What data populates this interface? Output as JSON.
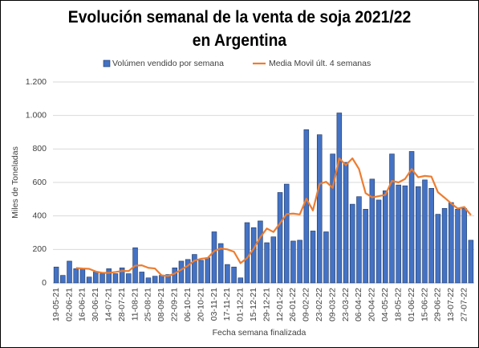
{
  "chart_data": {
    "type": "bar_line",
    "title": "Evolución semanal de la venta de soja 2021/22 en Argentina",
    "x_label": "Fecha semana finalizada",
    "y_label": "Miles de Toneladas",
    "categories": [
      "19-05-21",
      null,
      "02-06-21",
      null,
      "16-06-21",
      null,
      "30-06-21",
      null,
      "14-07-21",
      null,
      "28-07-21",
      null,
      "11-08-21",
      null,
      "25-08-21",
      null,
      "08-09-21",
      null,
      "22-09-21",
      null,
      "06-10-21",
      null,
      "20-10-21",
      null,
      "03-11-21",
      null,
      "17-11-21",
      null,
      "01-12-21",
      null,
      "15-12-21",
      null,
      "29-12-21",
      null,
      "12-01-22",
      null,
      "26-01-22",
      null,
      "09-02-22",
      null,
      "23-02-22",
      null,
      "09-03-22",
      null,
      "23-03-22",
      null,
      "06-04-22",
      null,
      "20-04-22",
      null,
      "04-05-22",
      null,
      "18-05-22",
      null,
      "01-06-22",
      null,
      "15-06-22",
      null,
      "29-06-22",
      null,
      "13-07-22",
      null,
      "27-07-22",
      null
    ],
    "series": [
      {
        "name": "Volúmen vendido por semana",
        "type": "bar",
        "color": "#4472c4",
        "values": [
          95,
          45,
          130,
          85,
          85,
          35,
          65,
          55,
          85,
          55,
          90,
          55,
          210,
          65,
          30,
          40,
          45,
          50,
          90,
          130,
          140,
          170,
          135,
          150,
          305,
          235,
          110,
          95,
          30,
          360,
          330,
          370,
          240,
          275,
          540,
          590,
          250,
          255,
          915,
          310,
          885,
          305,
          770,
          1015,
          720,
          470,
          515,
          440,
          620,
          495,
          550,
          770,
          585,
          580,
          785,
          575,
          615,
          565,
          410,
          445,
          480,
          440,
          445,
          255
        ]
      },
      {
        "name": "Media Movil últ. 4 semanas",
        "type": "line",
        "color": "#ed7d31",
        "values": [
          null,
          null,
          null,
          89,
          86,
          84,
          68,
          60,
          60,
          65,
          71,
          71,
          103,
          105,
          90,
          86,
          45,
          41,
          56,
          79,
          103,
          133,
          144,
          149,
          190,
          206,
          200,
          186,
          118,
          149,
          204,
          273,
          325,
          304,
          356,
          411,
          414,
          409,
          503,
          433,
          591,
          604,
          568,
          744,
          703,
          744,
          680,
          536,
          511,
          518,
          526,
          609,
          600,
          621,
          680,
          631,
          639,
          635,
          541,
          509,
          475,
          444,
          453,
          405
        ]
      }
    ],
    "ylim": [
      0,
      1200
    ],
    "yticks": [
      0,
      200,
      400,
      600,
      800,
      {
        "value": 1000,
        "label": "1.000"
      },
      {
        "value": 1200,
        "label": "1.200"
      }
    ],
    "grid": true,
    "legend": "top"
  }
}
